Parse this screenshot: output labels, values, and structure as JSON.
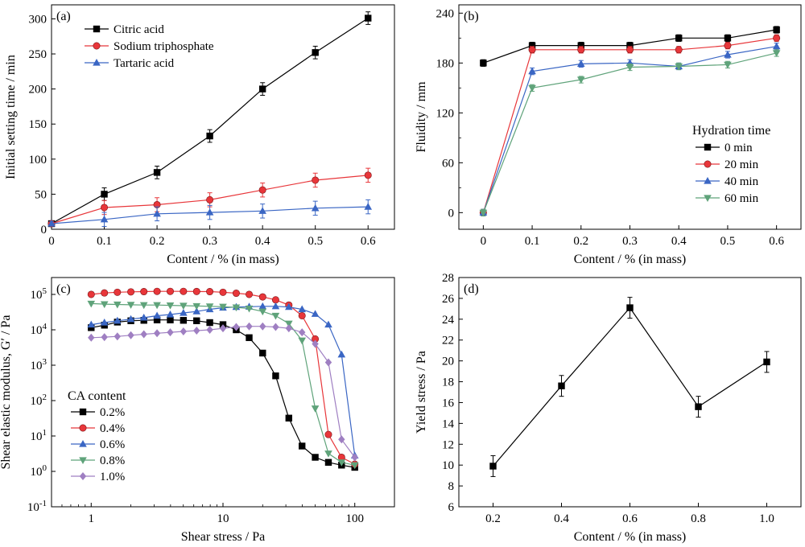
{
  "chart_data": [
    {
      "panel_label": "(a)",
      "type": "line",
      "xlabel": "Content / % (in mass)",
      "ylabel": "Initial setting time / min",
      "xlim": [
        0,
        0.65
      ],
      "ylim": [
        0,
        320
      ],
      "xticks": [
        "0",
        "0.1",
        "0.2",
        "0.3",
        "0.4",
        "0.5",
        "0.6"
      ],
      "xtick_values": [
        0,
        0.1,
        0.2,
        0.3,
        0.4,
        0.5,
        0.6
      ],
      "yticks": [
        "0",
        "50",
        "100",
        "150",
        "200",
        "250",
        "300"
      ],
      "ytick_values": [
        0,
        50,
        100,
        150,
        200,
        250,
        300
      ],
      "legend_position": "top-left",
      "x": [
        0,
        0.1,
        0.2,
        0.3,
        0.4,
        0.5,
        0.6
      ],
      "series": [
        {
          "name": "Citric acid",
          "color": "#000000",
          "marker": "square",
          "values": [
            8,
            50,
            81,
            133,
            200,
            252,
            301
          ],
          "errors": [
            3,
            9,
            9,
            9,
            9,
            9,
            9
          ]
        },
        {
          "name": "Sodium triphosphate",
          "color": "#e8363a",
          "marker": "circle",
          "values": [
            8,
            31,
            35,
            42,
            56,
            70,
            77
          ],
          "errors": [
            3,
            10,
            10,
            10,
            10,
            10,
            10
          ]
        },
        {
          "name": "Tartaric acid",
          "color": "#3a66c4",
          "marker": "triangle-up",
          "values": [
            8,
            14,
            22,
            24,
            26,
            30,
            32
          ],
          "errors": [
            3,
            10,
            10,
            10,
            10,
            10,
            10
          ]
        }
      ]
    },
    {
      "panel_label": "(b)",
      "type": "line",
      "xlabel": "Content / % (in mass)",
      "ylabel": "Fluidity / mm",
      "xlim": [
        -0.05,
        0.65
      ],
      "ylim": [
        -20,
        250
      ],
      "xticks": [
        "0",
        "0.1",
        "0.2",
        "0.3",
        "0.4",
        "0.5",
        "0.6"
      ],
      "xtick_values": [
        0,
        0.1,
        0.2,
        0.3,
        0.4,
        0.5,
        0.6
      ],
      "yticks": [
        "0",
        "60",
        "120",
        "180",
        "240"
      ],
      "ytick_values": [
        0,
        60,
        120,
        180,
        240
      ],
      "legend_title": "Hydration time",
      "legend_position": "bottom-right",
      "x": [
        0,
        0.1,
        0.2,
        0.3,
        0.4,
        0.5,
        0.6
      ],
      "series": [
        {
          "name": "0 min",
          "color": "#000000",
          "marker": "square",
          "values": [
            180,
            201,
            201,
            201,
            210,
            210,
            220
          ],
          "errors": [
            4,
            4,
            4,
            4,
            4,
            4,
            4
          ]
        },
        {
          "name": "20 min",
          "color": "#e8363a",
          "marker": "circle",
          "values": [
            0,
            196,
            196,
            196,
            196,
            201,
            210
          ],
          "errors": [
            4,
            4,
            4,
            4,
            4,
            4,
            4
          ]
        },
        {
          "name": "40 min",
          "color": "#3a66c4",
          "marker": "triangle-up",
          "values": [
            0,
            170,
            179,
            180,
            176,
            190,
            200
          ],
          "errors": [
            4,
            4,
            4,
            4,
            4,
            4,
            4
          ]
        },
        {
          "name": "60 min",
          "color": "#5fa37a",
          "marker": "triangle-down",
          "values": [
            0,
            150,
            160,
            175,
            176,
            178,
            192
          ],
          "errors": [
            4,
            4,
            4,
            4,
            4,
            4,
            4
          ]
        }
      ]
    },
    {
      "panel_label": "(c)",
      "type": "line",
      "xscale": "log",
      "yscale": "log",
      "xlabel": "Shear  stress / Pa",
      "ylabel": "Shear elastic modulus, G′ / Pa",
      "xlim": [
        0.5,
        200
      ],
      "ylim": [
        0.1,
        300000
      ],
      "xticks": [
        "1",
        "10",
        "100"
      ],
      "xtick_values": [
        1,
        10,
        100
      ],
      "ytick_values": [
        0.1,
        1,
        10,
        100,
        1000,
        10000,
        100000
      ],
      "legend_title": "CA content",
      "legend_position": "bottom-left",
      "series": [
        {
          "name": "0.2%",
          "color": "#000000",
          "marker": "square",
          "x": [
            1,
            1.26,
            1.58,
            2,
            2.51,
            3.16,
            3.98,
            5.01,
            6.31,
            7.94,
            10,
            12.6,
            15.8,
            20,
            25.1,
            31.6,
            39.8,
            50.1,
            63.1,
            79.4,
            100
          ],
          "values": [
            11500,
            13500,
            16500,
            18000,
            18500,
            19000,
            19000,
            18500,
            18000,
            16000,
            14000,
            10000,
            6000,
            2200,
            500,
            32,
            5.2,
            2.5,
            1.8,
            1.5,
            1.3
          ]
        },
        {
          "name": "0.4%",
          "color": "#e8363a",
          "marker": "circle",
          "x": [
            1,
            1.26,
            1.58,
            2,
            2.51,
            3.16,
            3.98,
            5.01,
            6.31,
            7.94,
            10,
            12.6,
            15.8,
            20,
            25.1,
            31.6,
            39.8,
            50.1,
            63.1,
            79.4,
            100
          ],
          "values": [
            100000,
            110000,
            115000,
            118000,
            120000,
            122000,
            122000,
            122000,
            121000,
            120000,
            115000,
            108000,
            100000,
            85000,
            70000,
            50000,
            25000,
            5500,
            11,
            2.5,
            1.6
          ]
        },
        {
          "name": "0.6%",
          "color": "#3a66c4",
          "marker": "triangle-up",
          "x": [
            1,
            1.26,
            1.58,
            2,
            2.51,
            3.16,
            3.98,
            5.01,
            6.31,
            7.94,
            10,
            12.6,
            15.8,
            20,
            25.1,
            31.6,
            39.8,
            50.1,
            63.1,
            79.4,
            100
          ],
          "values": [
            14000,
            16000,
            18000,
            20000,
            22000,
            25000,
            27000,
            30000,
            33000,
            38000,
            42000,
            44000,
            45000,
            46000,
            46000,
            44000,
            38000,
            28000,
            14000,
            2000,
            2.8
          ]
        },
        {
          "name": "0.8%",
          "color": "#5fa37a",
          "marker": "triangle-down",
          "x": [
            1,
            1.26,
            1.58,
            2,
            2.51,
            3.16,
            3.98,
            5.01,
            6.31,
            7.94,
            10,
            12.6,
            15.8,
            20,
            25.1,
            31.6,
            39.8,
            50.1,
            63.1,
            79.4,
            100
          ],
          "values": [
            55000,
            53000,
            52000,
            51000,
            50000,
            50000,
            49000,
            48000,
            47000,
            46000,
            45000,
            43000,
            40000,
            33000,
            25000,
            15000,
            5000,
            60,
            3.2,
            1.8,
            1.5
          ]
        },
        {
          "name": "1.0%",
          "color": "#9f7fc2",
          "marker": "diamond",
          "x": [
            1,
            1.26,
            1.58,
            2,
            2.51,
            3.16,
            3.98,
            5.01,
            6.31,
            7.94,
            10,
            12.6,
            15.8,
            20,
            25.1,
            31.6,
            39.8,
            50.1,
            63.1,
            79.4,
            100
          ],
          "values": [
            6000,
            6200,
            6500,
            7000,
            7500,
            8000,
            8500,
            9000,
            9500,
            10000,
            11000,
            12000,
            12500,
            12500,
            12000,
            11000,
            8500,
            4000,
            1200,
            8,
            2.5
          ]
        }
      ]
    },
    {
      "panel_label": "(d)",
      "type": "line",
      "xlabel": "Content / % (in mass)",
      "ylabel": "Yield stress / Pa",
      "xlim": [
        0.1,
        1.1
      ],
      "ylim": [
        6,
        28
      ],
      "xticks": [
        "0.2",
        "0.4",
        "0.6",
        "0.8",
        "1.0"
      ],
      "xtick_values": [
        0.2,
        0.4,
        0.6,
        0.8,
        1.0
      ],
      "yticks": [
        "6",
        "8",
        "10",
        "12",
        "14",
        "16",
        "18",
        "20",
        "22",
        "24",
        "26",
        "28"
      ],
      "ytick_values": [
        6,
        8,
        10,
        12,
        14,
        16,
        18,
        20,
        22,
        24,
        26,
        28
      ],
      "x": [
        0.2,
        0.4,
        0.6,
        0.8,
        1.0
      ],
      "series": [
        {
          "color": "#000000",
          "marker": "square",
          "values": [
            9.9,
            17.6,
            25.1,
            15.6,
            19.9
          ],
          "errors": [
            1.0,
            1.0,
            1.0,
            1.0,
            1.0
          ]
        }
      ]
    }
  ]
}
